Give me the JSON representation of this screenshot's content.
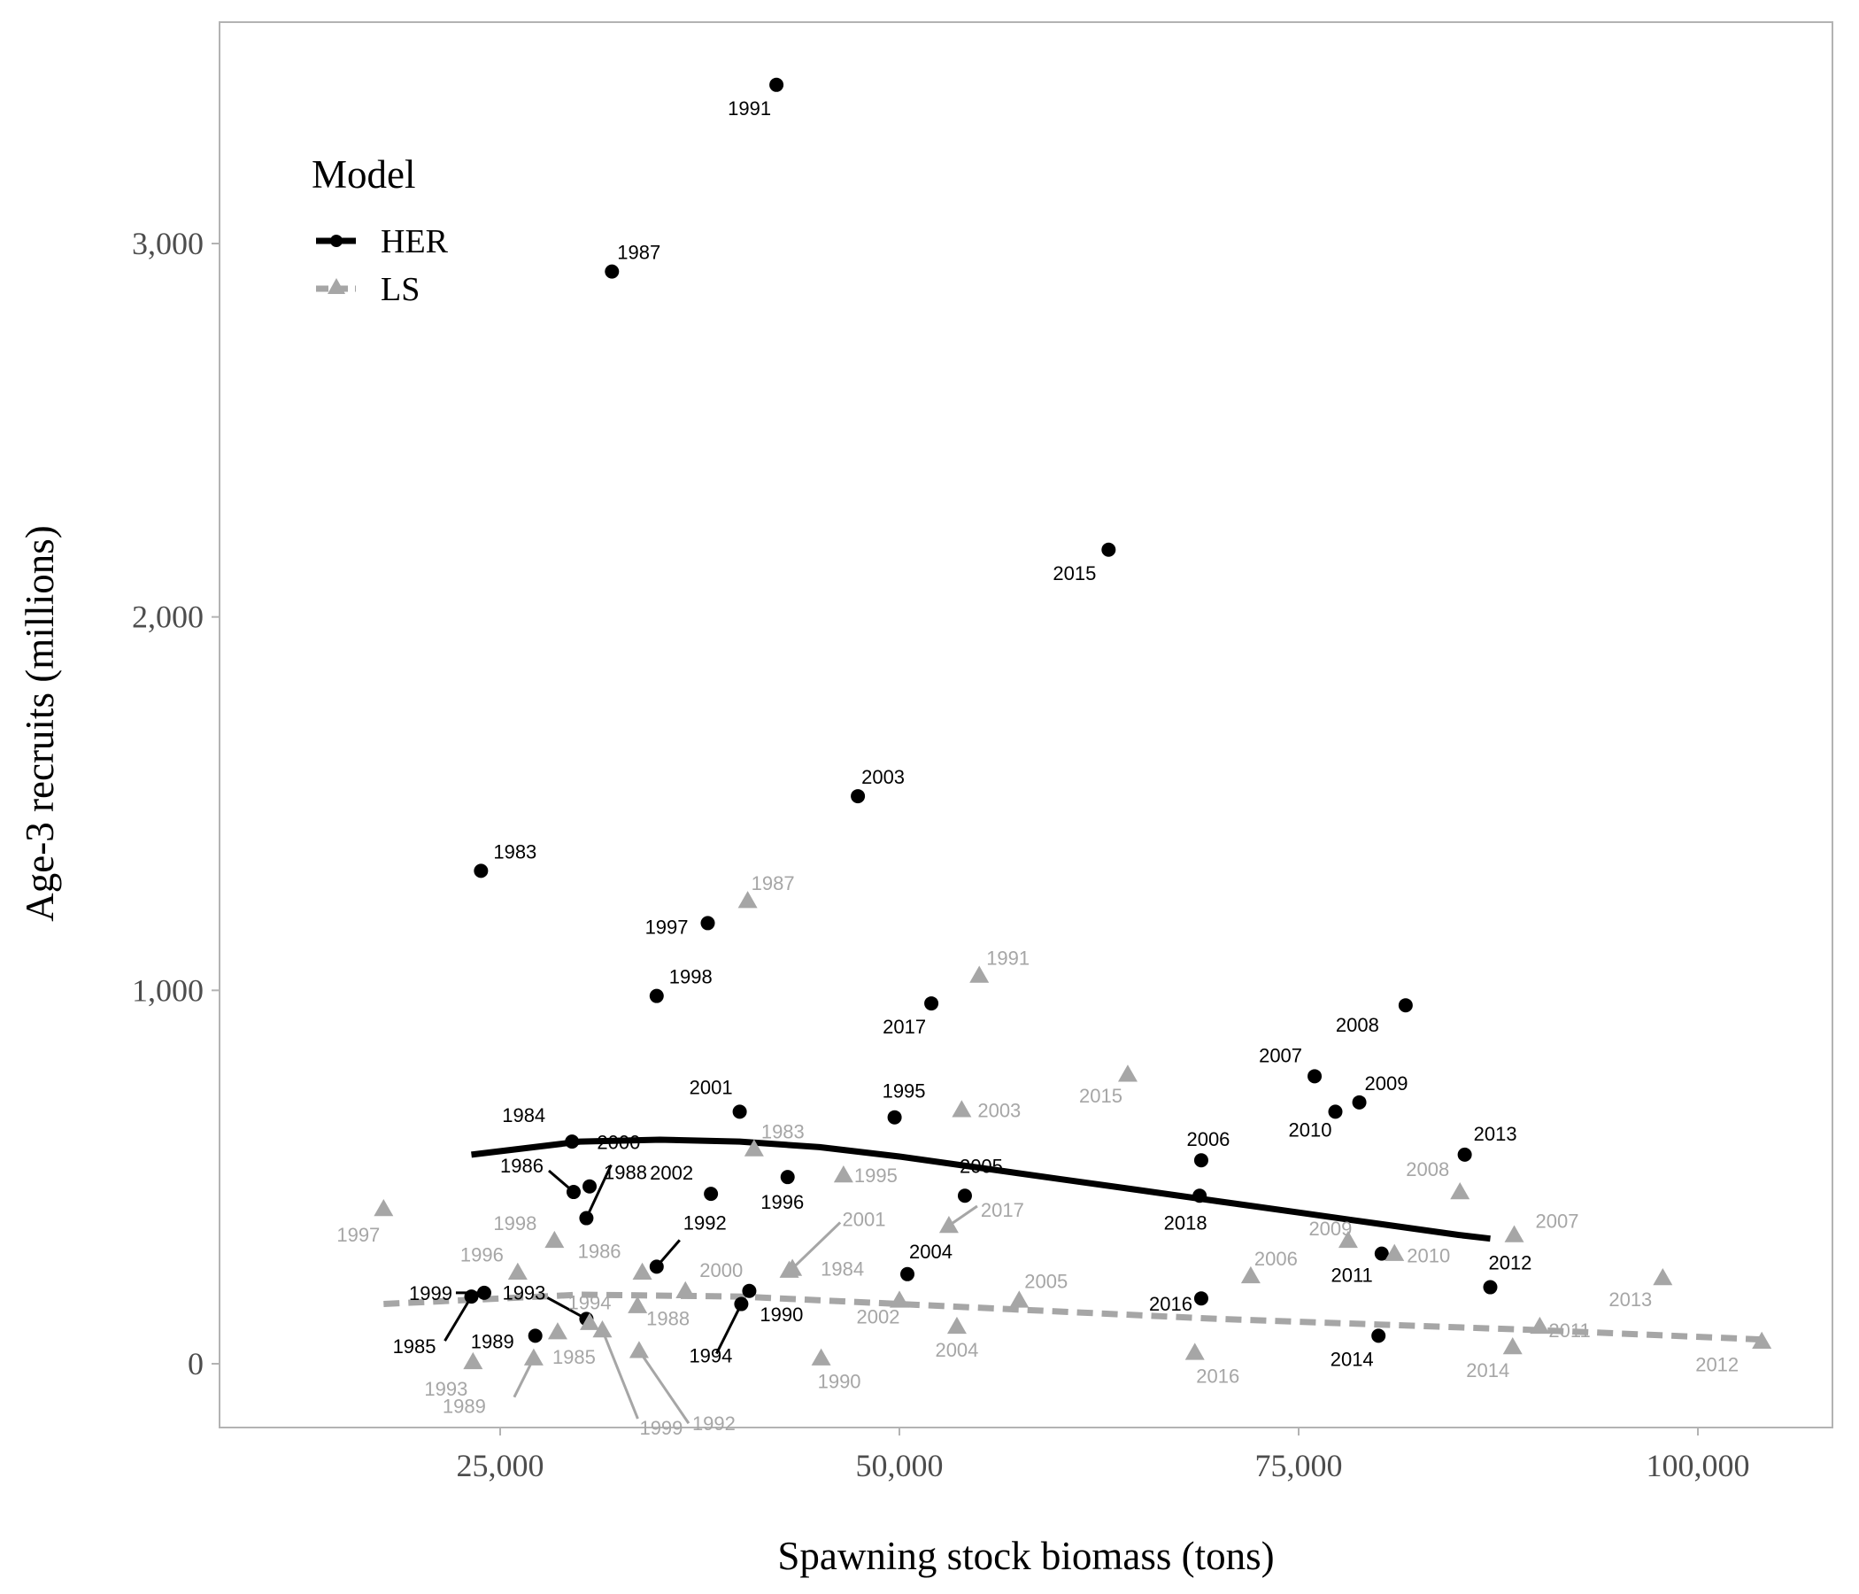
{
  "chart_data": {
    "type": "scatter",
    "xlabel": "Spawning stock biomass (tons)",
    "ylabel": "Age-3 recruits (millions)",
    "xlim": [
      14500,
      107000
    ],
    "ylim": [
      -170,
      3600
    ],
    "xticks": [
      25000,
      50000,
      75000,
      100000
    ],
    "xtick_labels": [
      "25,000",
      "50,000",
      "75,000",
      "100,000"
    ],
    "yticks": [
      0,
      1000,
      2000,
      3000
    ],
    "ytick_labels": [
      "0",
      "1,000",
      "2,000",
      "3,000"
    ],
    "grid": false,
    "legend": {
      "title": "Model",
      "placement": "top-left",
      "entries": [
        "HER",
        "LS"
      ]
    },
    "colors": {
      "HER": "#000000",
      "LS": "#a6a6a6"
    },
    "series": [
      {
        "name": "HER",
        "marker": "circle",
        "points": [
          {
            "year": "1983",
            "x": 23800,
            "y": 1320
          },
          {
            "year": "1984",
            "x": 29500,
            "y": 595
          },
          {
            "year": "1985",
            "x": 23200,
            "y": 180
          },
          {
            "year": "1986",
            "x": 29600,
            "y": 460
          },
          {
            "year": "1987",
            "x": 32000,
            "y": 2925
          },
          {
            "year": "1988",
            "x": 30600,
            "y": 475
          },
          {
            "year": "1989",
            "x": 27200,
            "y": 75
          },
          {
            "year": "1990",
            "x": 40600,
            "y": 195
          },
          {
            "year": "1991",
            "x": 42300,
            "y": 3425
          },
          {
            "year": "1992",
            "x": 34800,
            "y": 260
          },
          {
            "year": "1993",
            "x": 30400,
            "y": 120
          },
          {
            "year": "1994",
            "x": 40100,
            "y": 160
          },
          {
            "year": "1995",
            "x": 49700,
            "y": 660
          },
          {
            "year": "1996",
            "x": 43000,
            "y": 500
          },
          {
            "year": "1997",
            "x": 38000,
            "y": 1180
          },
          {
            "year": "1998",
            "x": 34800,
            "y": 985
          },
          {
            "year": "1999",
            "x": 24000,
            "y": 190
          },
          {
            "year": "2000",
            "x": 30400,
            "y": 390
          },
          {
            "year": "2001",
            "x": 40000,
            "y": 675
          },
          {
            "year": "2002",
            "x": 38200,
            "y": 455
          },
          {
            "year": "2003",
            "x": 47400,
            "y": 1520
          },
          {
            "year": "2004",
            "x": 50500,
            "y": 240
          },
          {
            "year": "2005",
            "x": 54100,
            "y": 450
          },
          {
            "year": "2006",
            "x": 68900,
            "y": 545
          },
          {
            "year": "2007",
            "x": 76000,
            "y": 770
          },
          {
            "year": "2008",
            "x": 81700,
            "y": 960
          },
          {
            "year": "2009",
            "x": 78800,
            "y": 700
          },
          {
            "year": "2010",
            "x": 77300,
            "y": 675
          },
          {
            "year": "2011",
            "x": 80200,
            "y": 295
          },
          {
            "year": "2012",
            "x": 87000,
            "y": 205
          },
          {
            "year": "2013",
            "x": 85400,
            "y": 560
          },
          {
            "year": "2014",
            "x": 80000,
            "y": 75
          },
          {
            "year": "2015",
            "x": 63100,
            "y": 2180
          },
          {
            "year": "2016",
            "x": 68900,
            "y": 175
          },
          {
            "year": "2017",
            "x": 52000,
            "y": 965
          },
          {
            "year": "2018",
            "x": 68800,
            "y": 450
          }
        ],
        "fit": {
          "style": "solid",
          "x": [
            23200,
            30000,
            35000,
            40000,
            45000,
            50000,
            55000,
            60000,
            65000,
            70000,
            75000,
            80000,
            85000,
            87000
          ],
          "y": [
            560,
            595,
            600,
            595,
            580,
            555,
            525,
            495,
            465,
            435,
            405,
            375,
            345,
            335
          ]
        }
      },
      {
        "name": "LS",
        "marker": "triangle",
        "points": [
          {
            "year": "1983",
            "x": 40900,
            "y": 575
          },
          {
            "year": "1984",
            "x": 43300,
            "y": 255
          },
          {
            "year": "1985",
            "x": 28600,
            "y": 85
          },
          {
            "year": "1986",
            "x": 33900,
            "y": 245
          },
          {
            "year": "1987",
            "x": 40500,
            "y": 1240
          },
          {
            "year": "1988",
            "x": 33600,
            "y": 155
          },
          {
            "year": "1989",
            "x": 27100,
            "y": 15
          },
          {
            "year": "1990",
            "x": 45100,
            "y": 15
          },
          {
            "year": "1991",
            "x": 55000,
            "y": 1040
          },
          {
            "year": "1992",
            "x": 33700,
            "y": 35
          },
          {
            "year": "1993",
            "x": 23300,
            "y": 5
          },
          {
            "year": "1994",
            "x": 30600,
            "y": 110
          },
          {
            "year": "1995",
            "x": 46500,
            "y": 505
          },
          {
            "year": "1996",
            "x": 26100,
            "y": 245
          },
          {
            "year": "1997",
            "x": 17700,
            "y": 415
          },
          {
            "year": "1998",
            "x": 28400,
            "y": 330
          },
          {
            "year": "1999",
            "x": 31400,
            "y": 90
          },
          {
            "year": "2000",
            "x": 36600,
            "y": 195
          },
          {
            "year": "2001",
            "x": 43100,
            "y": 250
          },
          {
            "year": "2002",
            "x": 50000,
            "y": 170
          },
          {
            "year": "2003",
            "x": 53900,
            "y": 680
          },
          {
            "year": "2004",
            "x": 53600,
            "y": 100
          },
          {
            "year": "2005",
            "x": 57500,
            "y": 170
          },
          {
            "year": "2006",
            "x": 72000,
            "y": 235
          },
          {
            "year": "2007",
            "x": 88500,
            "y": 345
          },
          {
            "year": "2008",
            "x": 85100,
            "y": 460
          },
          {
            "year": "2009",
            "x": 78100,
            "y": 330
          },
          {
            "year": "2010",
            "x": 81000,
            "y": 295
          },
          {
            "year": "2011",
            "x": 90100,
            "y": 100
          },
          {
            "year": "2012",
            "x": 104000,
            "y": 60
          },
          {
            "year": "2013",
            "x": 97800,
            "y": 230
          },
          {
            "year": "2014",
            "x": 88400,
            "y": 45
          },
          {
            "year": "2015",
            "x": 64300,
            "y": 775
          },
          {
            "year": "2016",
            "x": 68500,
            "y": 30
          },
          {
            "year": "2017",
            "x": 53100,
            "y": 370
          }
        ],
        "fit": {
          "style": "dashed",
          "x": [
            17700,
            30000,
            40000,
            50000,
            60000,
            70000,
            80000,
            90000,
            104000
          ],
          "y": [
            160,
            185,
            180,
            160,
            140,
            120,
            105,
            90,
            65
          ]
        }
      }
    ]
  }
}
